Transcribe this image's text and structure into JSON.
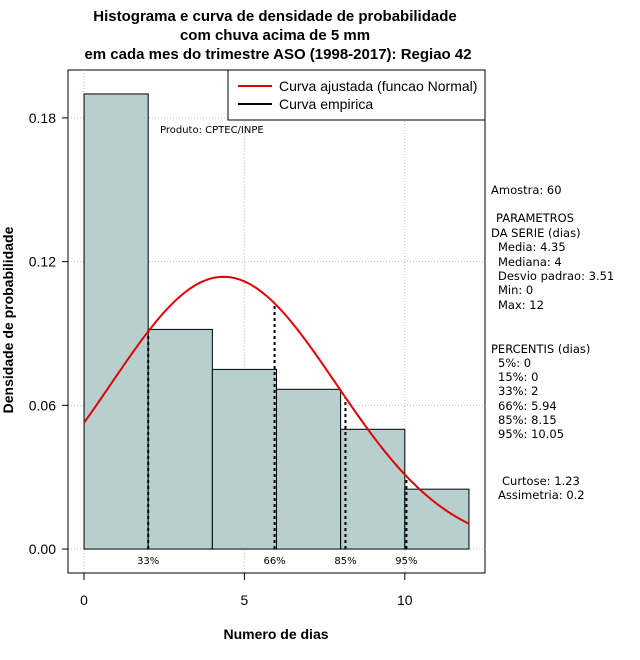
{
  "chart_data": {
    "type": "histogram",
    "title": [
      "Histograma e curva de densidade de probabilidade",
      "com chuva acima de 5 mm",
      "em cada mes do trimestre ASO (1998-2017): Regiao 42"
    ],
    "xlabel": "Numero de dias",
    "ylabel": "Densidade de probabilidade",
    "xlim": [
      -0.5,
      12.5
    ],
    "ylim": [
      -0.01,
      0.2
    ],
    "x_ticks": [
      0,
      5,
      10
    ],
    "y_ticks": [
      0.0,
      0.06,
      0.12,
      0.18
    ],
    "y_tick_labels": [
      "0.00",
      "0.06",
      "0.12",
      "0.18"
    ],
    "grid_x": [
      0,
      5,
      10
    ],
    "grid_y": [
      0.0,
      0.06,
      0.12,
      0.18
    ],
    "bins": [
      {
        "from": 0,
        "to": 2,
        "density": 0.19
      },
      {
        "from": 2,
        "to": 4,
        "density": 0.0917
      },
      {
        "from": 4,
        "to": 6,
        "density": 0.075
      },
      {
        "from": 6,
        "to": 8,
        "density": 0.0667
      },
      {
        "from": 8,
        "to": 10,
        "density": 0.05
      },
      {
        "from": 10,
        "to": 12,
        "density": 0.025
      }
    ],
    "normal_curve": {
      "label": "Curva ajustada (funcao Normal)",
      "mean": 4.35,
      "sd": 3.51,
      "color": "#e00000"
    },
    "empirical_curve": {
      "label": "Curva empirica",
      "color": "#000000"
    },
    "percentile_lines": [
      {
        "label": "33%",
        "x": 2
      },
      {
        "label": "66%",
        "x": 5.94
      },
      {
        "label": "85%",
        "x": 8.15
      },
      {
        "label": "95%",
        "x": 10.05
      }
    ],
    "bar_color": "#b7cfcf",
    "source_note": "Produto: CPTEC/INPE"
  },
  "stats": {
    "amostra": "Amostra: 60",
    "params_title_1": "PARAMETROS",
    "params_title_2": "DA SERIE (dias)",
    "media": "Media: 4.35",
    "mediana": "Mediana: 4",
    "desvio": "Desvio padrao: 3.51",
    "min": "Min: 0",
    "max": "Max: 12",
    "percentis_title": "PERCENTIS (dias)",
    "p5": "5%: 0",
    "p15": "15%: 0",
    "p33": "33%: 2",
    "p66": "66%: 5.94",
    "p85": "85%: 8.15",
    "p95": "95%: 10.05",
    "curtose": "Curtose: 1.23",
    "assimetria": "Assimetria: 0.2"
  }
}
